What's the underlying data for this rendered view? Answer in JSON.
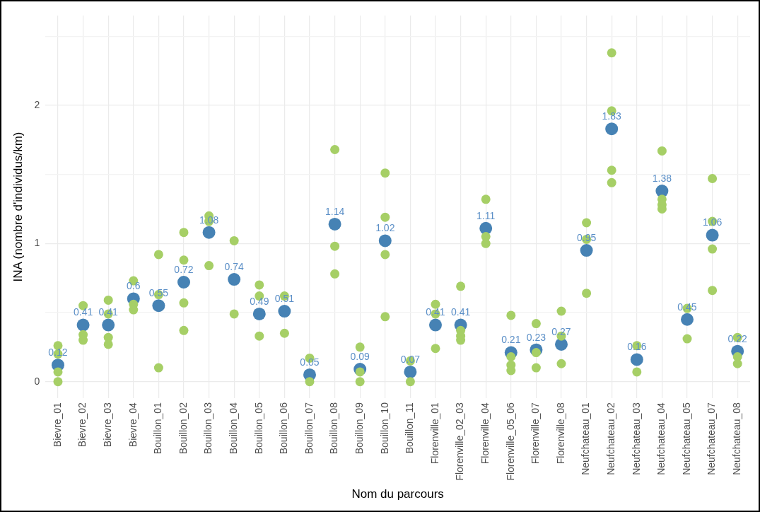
{
  "chart_data": {
    "type": "scatter",
    "xlabel": "Nom du parcours",
    "ylabel": "INA (nombre d'individus/km)",
    "categories": [
      "Bievre_01",
      "Bievre_02",
      "Bievre_03",
      "Bievre_04",
      "Bouillon_01",
      "Bouillon_02",
      "Bouillon_03",
      "Bouillon_04",
      "Bouillon_05",
      "Bouillon_06",
      "Bouillon_07",
      "Bouillon_08",
      "Bouillon_09",
      "Bouillon_10",
      "Bouillon_11",
      "Florenville_01",
      "Florenville_02_03",
      "Florenville_04",
      "Florenville_05_06",
      "Florenville_07",
      "Florenville_08",
      "Neufchateau_01",
      "Neufchateau_02",
      "Neufchateau_03",
      "Neufchateau_04",
      "Neufchateau_05",
      "Neufchateau_07",
      "Neufchateau_08"
    ],
    "ylim": [
      -0.12,
      2.65
    ],
    "yticks": [
      0,
      {
        "value": 0.5,
        "label": null
      },
      1,
      {
        "value": 1.5,
        "label": null
      },
      2,
      {
        "value": 2.5,
        "label": null
      }
    ],
    "grid": true,
    "legend": false,
    "marker": "circle",
    "series": [
      {
        "color": "#a6cf66",
        "x": [
          "Bievre_01",
          "Bievre_01",
          "Bievre_01",
          "Bievre_01",
          "Bievre_02",
          "Bievre_02",
          "Bievre_02",
          "Bievre_03",
          "Bievre_03",
          "Bievre_03",
          "Bievre_03",
          "Bievre_04",
          "Bievre_04",
          "Bievre_04",
          "Bouillon_01",
          "Bouillon_01",
          "Bouillon_01",
          "Bouillon_02",
          "Bouillon_02",
          "Bouillon_02",
          "Bouillon_02",
          "Bouillon_03",
          "Bouillon_03",
          "Bouillon_03",
          "Bouillon_04",
          "Bouillon_04",
          "Bouillon_05",
          "Bouillon_05",
          "Bouillon_05",
          "Bouillon_06",
          "Bouillon_06",
          "Bouillon_07",
          "Bouillon_07",
          "Bouillon_08",
          "Bouillon_08",
          "Bouillon_08",
          "Bouillon_09",
          "Bouillon_09",
          "Bouillon_09",
          "Bouillon_10",
          "Bouillon_10",
          "Bouillon_10",
          "Bouillon_10",
          "Bouillon_11",
          "Bouillon_11",
          "Florenville_01",
          "Florenville_01",
          "Florenville_01",
          "Florenville_02_03",
          "Florenville_02_03",
          "Florenville_02_03",
          "Florenville_02_03",
          "Florenville_04",
          "Florenville_04",
          "Florenville_04",
          "Florenville_05_06",
          "Florenville_05_06",
          "Florenville_05_06",
          "Florenville_05_06",
          "Florenville_07",
          "Florenville_07",
          "Florenville_07",
          "Florenville_08",
          "Florenville_08",
          "Florenville_08",
          "Neufchateau_01",
          "Neufchateau_01",
          "Neufchateau_01",
          "Neufchateau_02",
          "Neufchateau_02",
          "Neufchateau_02",
          "Neufchateau_02",
          "Neufchateau_03",
          "Neufchateau_03",
          "Neufchateau_04",
          "Neufchateau_04",
          "Neufchateau_04",
          "Neufchateau_04",
          "Neufchateau_05",
          "Neufchateau_05",
          "Neufchateau_07",
          "Neufchateau_07",
          "Neufchateau_07",
          "Neufchateau_07",
          "Neufchateau_08",
          "Neufchateau_08",
          "Neufchateau_08"
        ],
        "values": [
          0.26,
          0.2,
          0.07,
          0,
          0.55,
          0.34,
          0.3,
          0.59,
          0.49,
          0.32,
          0.27,
          0.73,
          0.56,
          0.52,
          0.92,
          0.63,
          0.1,
          1.08,
          0.88,
          0.57,
          0.37,
          1.2,
          1.16,
          0.84,
          1.02,
          0.49,
          0.7,
          0.62,
          0.33,
          0.62,
          0.35,
          0.17,
          0,
          1.68,
          0.98,
          0.78,
          0.25,
          0.07,
          0,
          1.51,
          1.19,
          0.92,
          0.47,
          0.15,
          0,
          0.56,
          0.49,
          0.24,
          0.69,
          0.37,
          0.33,
          0.3,
          1.32,
          1.05,
          1,
          0.48,
          0.18,
          0.12,
          0.08,
          0.42,
          0.21,
          0.1,
          0.51,
          0.33,
          0.13,
          1.15,
          1.03,
          0.64,
          2.38,
          1.96,
          1.53,
          1.44,
          0.26,
          0.07,
          1.67,
          1.32,
          1.28,
          1.25,
          0.53,
          0.31,
          1.47,
          1.16,
          0.96,
          0.66,
          0.32,
          0.18,
          0.13
        ]
      },
      {
        "color": "#4682b4",
        "values": [
          0.12,
          0.41,
          0.41,
          0.6,
          0.55,
          0.72,
          1.08,
          0.74,
          0.49,
          0.51,
          0.05,
          1.14,
          0.09,
          1.02,
          0.07,
          0.41,
          0.41,
          1.11,
          0.21,
          0.23,
          0.27,
          0.95,
          1.83,
          0.16,
          1.38,
          0.45,
          1.06,
          0.22
        ],
        "value_labels": [
          "0.12",
          "0.41",
          "0.41",
          "0.6",
          "0.55",
          "0.72",
          "1.08",
          "0.74",
          "0.49",
          "0.51",
          "0.05",
          "1.14",
          "0.09",
          "1.02",
          "0.07",
          "0.41",
          "0.41",
          "1.11",
          "0.21",
          "0.23",
          "0.27",
          "0.95",
          "1.83",
          "0.16",
          "1.38",
          "0.45",
          "1.06",
          "0.22"
        ]
      }
    ]
  }
}
